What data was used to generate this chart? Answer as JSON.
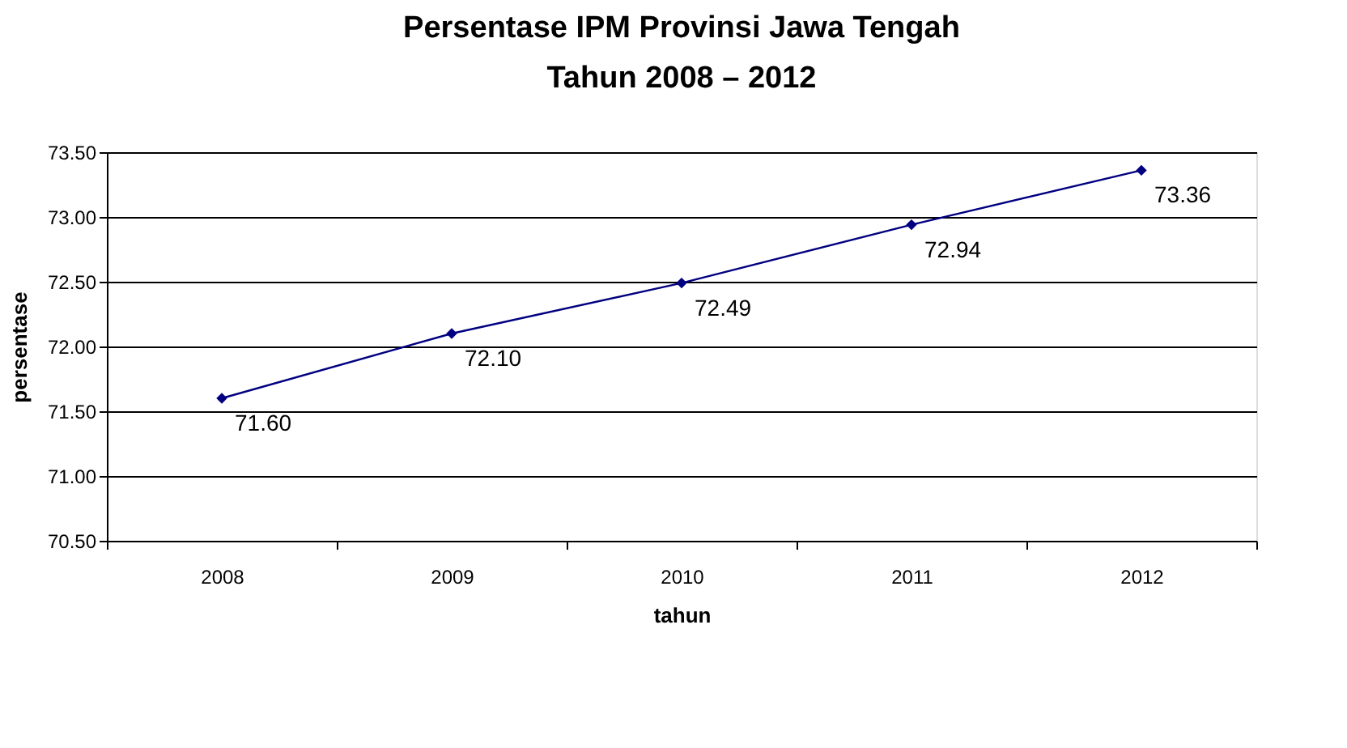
{
  "chart_data": {
    "type": "line",
    "title": "Persentase IPM Provinsi Jawa Tengah",
    "subtitle": "Tahun 2008 – 2012",
    "xlabel": "tahun",
    "ylabel": "persentase",
    "categories": [
      "2008",
      "2009",
      "2010",
      "2011",
      "2012"
    ],
    "series": [
      {
        "color": "#000080",
        "values": [
          71.6,
          72.1,
          72.49,
          72.94,
          73.36
        ],
        "value_labels": [
          "71.60",
          "72.10",
          "72.49",
          "72.94",
          "73.36"
        ]
      }
    ],
    "ylim": [
      70.5,
      73.5
    ],
    "yticks": [
      {
        "value": 70.5,
        "label": "70.50"
      },
      {
        "value": 71.0,
        "label": "71.00"
      },
      {
        "value": 71.5,
        "label": "71.50"
      },
      {
        "value": 72.0,
        "label": "72.00"
      },
      {
        "value": 72.5,
        "label": "72.50"
      },
      {
        "value": 73.0,
        "label": "73.00"
      },
      {
        "value": 73.5,
        "label": "73.50"
      }
    ],
    "grid": "y",
    "marker": "diamond",
    "line_style": "solid"
  }
}
